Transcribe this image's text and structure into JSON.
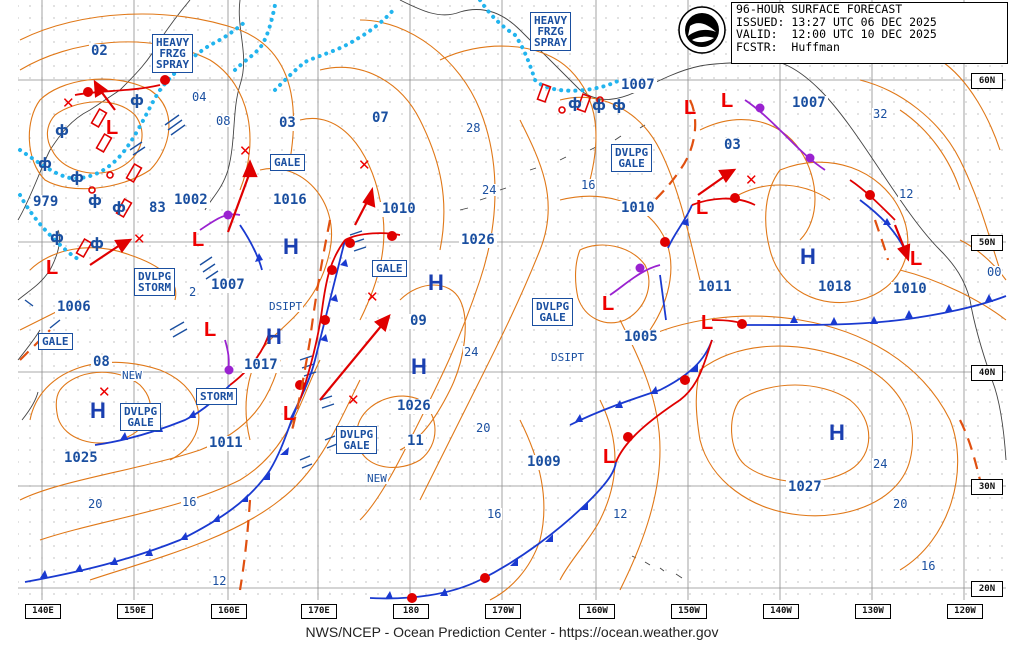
{
  "header": {
    "title": "96-HOUR SURFACE FORECAST",
    "issued_label": "ISSUED:",
    "issued": "13:27 UTC 06 DEC 2025",
    "valid_label": "VALID:",
    "valid": "12:00 UTC 10 DEC 2025",
    "fcstr_label": "FCSTR:",
    "fcstr": "Huffman"
  },
  "footer": "NWS/NCEP - Ocean Prediction Center - https://ocean.weather.gov",
  "lat_labels": [
    "60N",
    "50N",
    "40N",
    "30N",
    "20N"
  ],
  "lon_labels": [
    "140E",
    "150E",
    "160E",
    "170E",
    "180",
    "170W",
    "160W",
    "150W",
    "140W",
    "130W",
    "120W"
  ],
  "warnings": {
    "frzg1": [
      "HEAVY",
      "FRZG",
      "SPRAY"
    ],
    "frzg2": [
      "HEAVY",
      "FRZG",
      "SPRAY"
    ],
    "gale1": "GALE",
    "gale2": "GALE",
    "gale3": "GALE",
    "dvlpg_storm": [
      "DVLPG",
      "STORM"
    ],
    "storm": "STORM",
    "dvlpg_gale1": [
      "DVLPG",
      "GALE"
    ],
    "dvlpg_gale2": [
      "DVLPG",
      "GALE"
    ],
    "dvlpg_gale3": [
      "DVLPG",
      "GALE"
    ],
    "dvlpg_gale4": [
      "DVLPG",
      "GALE"
    ]
  },
  "pressures": {
    "p02": "02",
    "p979": "979",
    "p83": "83",
    "p1002": "1002",
    "p1006": "1006",
    "p08": "08",
    "p1025": "1025",
    "p03a": "03",
    "p1016": "1016",
    "p1007a": "1007",
    "p1017": "1017",
    "p1011a": "1011",
    "p07": "07",
    "p1010a": "1010",
    "p1026a": "1026",
    "p09": "09",
    "p1026b": "1026",
    "p11": "11",
    "p1009": "1009",
    "p1007b": "1007",
    "p03b": "03",
    "p1010b": "1010",
    "p1005": "1005",
    "p1011b": "1011",
    "p1007c": "1007",
    "p1018": "1018",
    "p1010c": "1010",
    "p1027": "1027"
  },
  "text_labels": {
    "new1": "NEW",
    "new2": "NEW",
    "dsipt1": "DSIPT",
    "dsipt2": "DSIPT"
  },
  "isobar_labels": {
    "i04": "04",
    "i08": "08",
    "i12a": "12",
    "i16a": "16",
    "i20a": "20",
    "i28": "28",
    "i24a": "24",
    "i16b": "16",
    "i24b": "24",
    "i20b": "20",
    "i16c": "16",
    "i12b": "12",
    "i32": "32",
    "i12c": "12",
    "i00": "00",
    "i24c": "24",
    "i20c": "20",
    "i16d": "16",
    "i2": "2"
  },
  "colors": {
    "high_symbol": "#1a3fb0",
    "low_symbol": "#e00000",
    "cold_front": "#1a3ad0",
    "warm_front": "#e00000",
    "occluded_front": "#9a22d0",
    "isobar": "#e07818",
    "ice_edge": "#22b4ee",
    "grid": "#888888",
    "coast": "#444444"
  }
}
